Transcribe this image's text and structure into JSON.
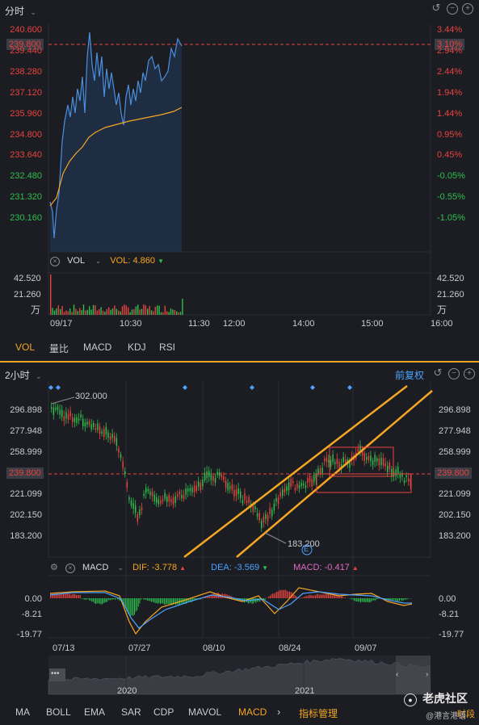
{
  "top": {
    "period": "分时",
    "left_axis": [
      "240.600",
      "239.440",
      "238.280",
      "237.120",
      "235.960",
      "234.800",
      "233.640",
      "232.480",
      "231.320",
      "230.160"
    ],
    "right_axis": [
      "3.44%",
      "2.94%",
      "2.44%",
      "1.94%",
      "1.44%",
      "0.95%",
      "0.45%",
      "-0.05%",
      "-0.55%",
      "-1.05%"
    ],
    "current_price": "239.800",
    "current_pct": "3.10%",
    "vol_label": "VOL",
    "vol_value": "VOL: 4.860",
    "vol_axis": [
      "42.520",
      "21.260",
      "万"
    ],
    "time_axis": [
      "09/17",
      "10:30",
      "11:30",
      "12:00",
      "14:00",
      "15:00",
      "16:00"
    ],
    "tabs": [
      "VOL",
      "量比",
      "MACD",
      "KDJ",
      "RSI"
    ]
  },
  "bottom": {
    "period": "2小时",
    "adjust": "前复权",
    "axis": [
      "296.898",
      "277.948",
      "258.999",
      "239.800",
      "221.099",
      "202.150",
      "183.200"
    ],
    "current_price": "239.800",
    "high_label": "302.000",
    "low_label": "183.200",
    "event_marker": "E",
    "macd_name": "MACD",
    "dif": "DIF: -3.778",
    "dea": "DEA: -3.569",
    "macd": "MACD: -0.417",
    "macd_axis": [
      "0.00",
      "-8.21",
      "-19.77"
    ],
    "dates": [
      "07/13",
      "07/27",
      "08/10",
      "08/24",
      "09/07"
    ],
    "overview_years": [
      "2020",
      "2021"
    ],
    "indicator_tabs": [
      "MA",
      "BOLL",
      "EMA",
      "SAR",
      "CDP",
      "MAVOL",
      "MACD"
    ],
    "manage": "指标管理",
    "watermark": "老虎社区",
    "watermark_sub": "@港言港语",
    "cut_text": "时段"
  },
  "colors": {
    "up": "#e8423f",
    "down": "#2fbf4f",
    "accent": "#f5a623",
    "price_line": "#4a8fe0"
  }
}
